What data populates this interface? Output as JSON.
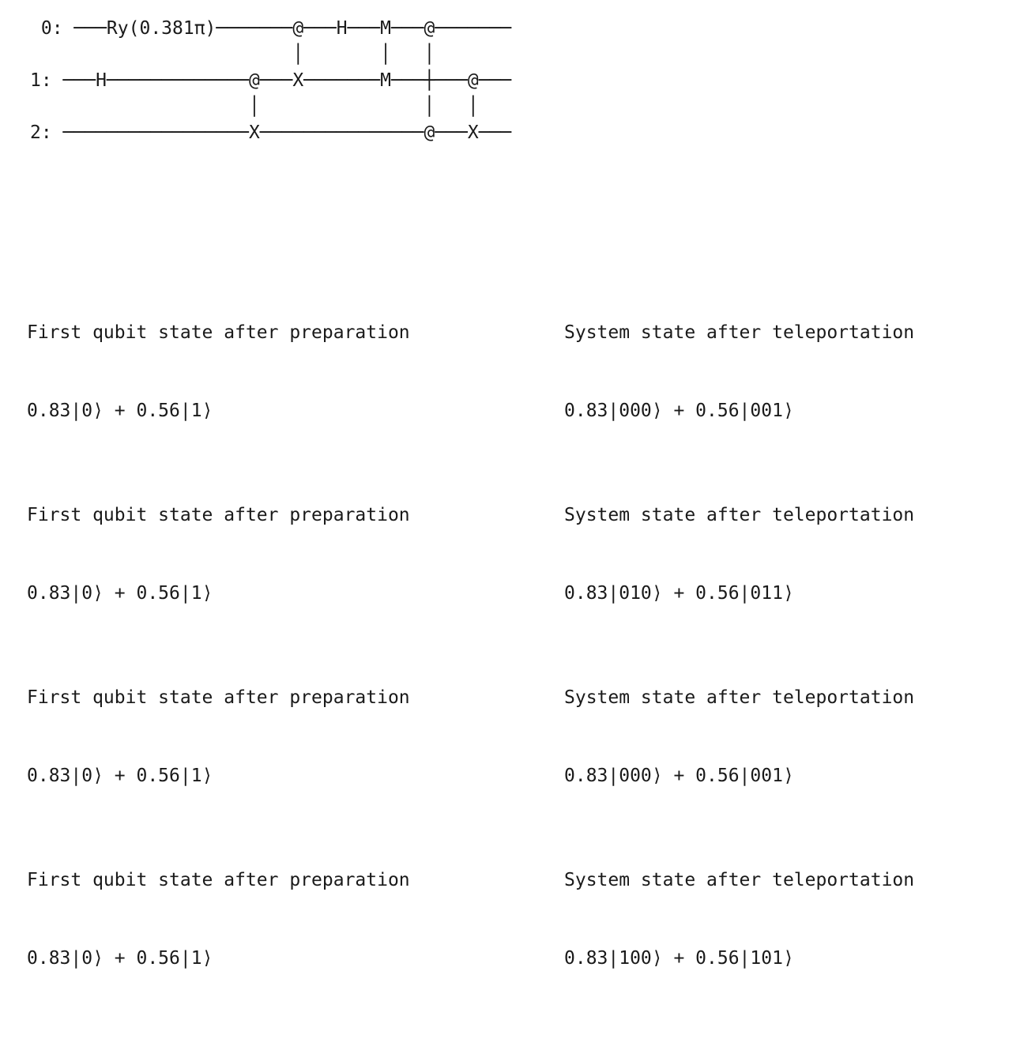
{
  "circuit": {
    "lines": [
      " 0: ───Ry(0.381π)───────@───H───M───@───────",
      "                        │       │   │",
      "1: ───H─────────────@───X───────M───┼───@───",
      "                    │               │   │",
      "2: ─────────────────X───────────────@───X───"
    ]
  },
  "results": [
    {
      "left_label": "First qubit state after preparation",
      "left_value": "0.83|0⟩ + 0.56|1⟩",
      "right_label": "System state after teleportation",
      "right_value": "0.83|000⟩ + 0.56|001⟩"
    },
    {
      "left_label": "First qubit state after preparation",
      "left_value": "0.83|0⟩ + 0.56|1⟩",
      "right_label": "System state after teleportation",
      "right_value": "0.83|010⟩ + 0.56|011⟩"
    },
    {
      "left_label": "First qubit state after preparation",
      "left_value": "0.83|0⟩ + 0.56|1⟩",
      "right_label": "System state after teleportation",
      "right_value": "0.83|000⟩ + 0.56|001⟩"
    },
    {
      "left_label": "First qubit state after preparation",
      "left_value": "0.83|0⟩ + 0.56|1⟩",
      "right_label": "System state after teleportation",
      "right_value": "0.83|100⟩ + 0.56|101⟩"
    }
  ]
}
